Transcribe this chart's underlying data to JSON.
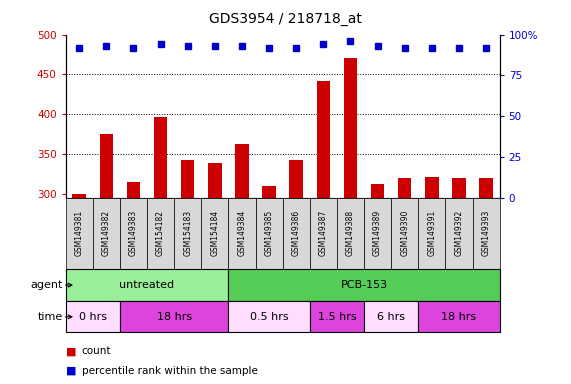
{
  "title": "GDS3954 / 218718_at",
  "samples": [
    "GSM149381",
    "GSM149382",
    "GSM149383",
    "GSM154182",
    "GSM154183",
    "GSM154184",
    "GSM149384",
    "GSM149385",
    "GSM149386",
    "GSM149387",
    "GSM149388",
    "GSM149389",
    "GSM149390",
    "GSM149391",
    "GSM149392",
    "GSM149393"
  ],
  "counts": [
    300,
    375,
    315,
    397,
    343,
    339,
    362,
    310,
    343,
    442,
    470,
    312,
    320,
    321,
    320,
    320
  ],
  "percentile_ranks": [
    92,
    93,
    92,
    94,
    93,
    93,
    93,
    92,
    92,
    94,
    96,
    93,
    92,
    92,
    92,
    92
  ],
  "count_ylim": [
    295,
    500
  ],
  "count_yticks": [
    300,
    350,
    400,
    450,
    500
  ],
  "percentile_ylim": [
    0,
    100
  ],
  "percentile_yticks": [
    0,
    25,
    50,
    75,
    100
  ],
  "bar_color": "#cc0000",
  "dot_color": "#0000cc",
  "bar_width": 0.5,
  "agent_groups": [
    {
      "label": "untreated",
      "start": 0,
      "end": 6,
      "color": "#99ee99"
    },
    {
      "label": "PCB-153",
      "start": 6,
      "end": 16,
      "color": "#55cc55"
    }
  ],
  "time_groups": [
    {
      "label": "0 hrs",
      "start": 0,
      "end": 2,
      "color": "#ffddff"
    },
    {
      "label": "18 hrs",
      "start": 2,
      "end": 6,
      "color": "#dd44dd"
    },
    {
      "label": "0.5 hrs",
      "start": 6,
      "end": 9,
      "color": "#ffddff"
    },
    {
      "label": "1.5 hrs",
      "start": 9,
      "end": 11,
      "color": "#dd44dd"
    },
    {
      "label": "6 hrs",
      "start": 11,
      "end": 13,
      "color": "#ffddff"
    },
    {
      "label": "18 hrs",
      "start": 13,
      "end": 16,
      "color": "#dd44dd"
    }
  ],
  "agent_label": "agent",
  "time_label": "time",
  "legend_count_label": "count",
  "legend_pct_label": "percentile rank within the sample",
  "bg_color": "#ffffff",
  "tick_label_color_left": "#cc0000",
  "tick_label_color_right": "#0000cc",
  "sample_box_color": "#d8d8d8",
  "dotted_lines": [
    350,
    400,
    450
  ],
  "n_samples": 16
}
